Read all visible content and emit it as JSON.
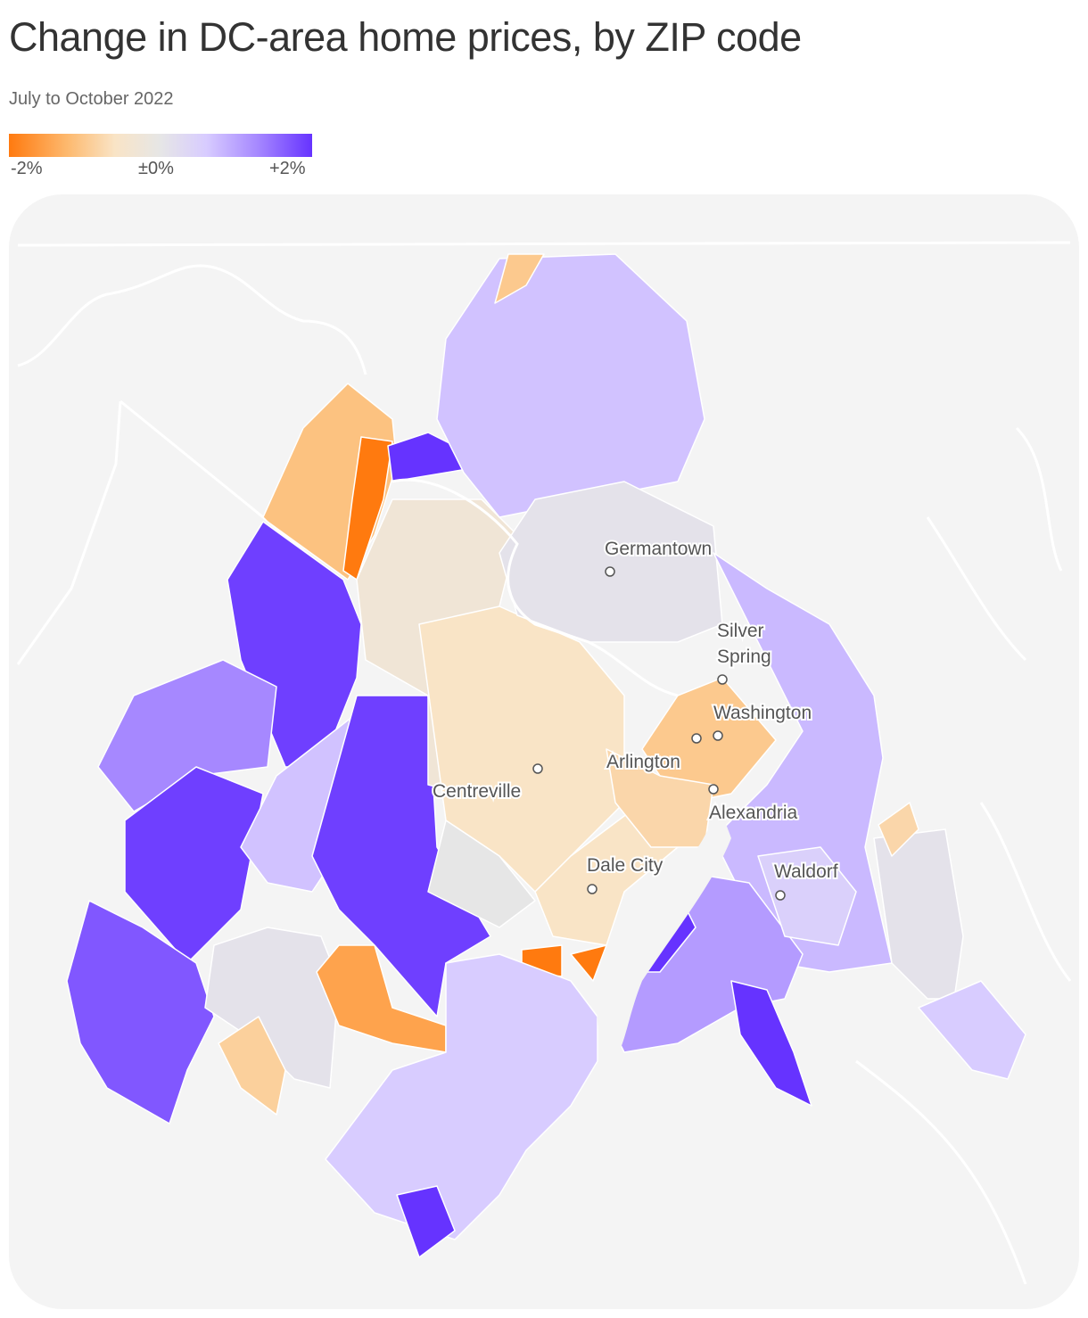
{
  "title": "Change in DC-area home prices, by ZIP code",
  "subtitle": "July to October 2022",
  "legend": {
    "min_label": "-2%",
    "mid_label": "±0%",
    "max_label": "+2%",
    "min_value": -2,
    "max_value": 2,
    "colors": {
      "negative": "#ff7a0f",
      "light_negative": "#f9dcb8",
      "neutral": "#e6e6e6",
      "light_positive": "#d8ccff",
      "positive": "#6633ff"
    }
  },
  "cities": [
    {
      "name": "Germantown"
    },
    {
      "name": "Silver Spring"
    },
    {
      "name": "Washington"
    },
    {
      "name": "Arlington"
    },
    {
      "name": "Centreville"
    },
    {
      "name": "Alexandria"
    },
    {
      "name": "Dale City"
    },
    {
      "name": "Waldorf"
    }
  ],
  "zip_changes_pct": [
    -1.1,
    -2,
    2,
    1.9,
    1.3,
    1.9,
    1.7,
    0.1,
    -0.9,
    -1.5,
    0.7,
    1.9,
    -0.3,
    -0.6,
    0.0,
    -0.6,
    -2,
    -2,
    0.6,
    2,
    0.7,
    -1,
    0.1,
    0.8,
    -1.0,
    -0.8,
    0.1,
    0.6,
    1.1,
    2,
    2,
    0.5,
    -0.8
  ]
}
